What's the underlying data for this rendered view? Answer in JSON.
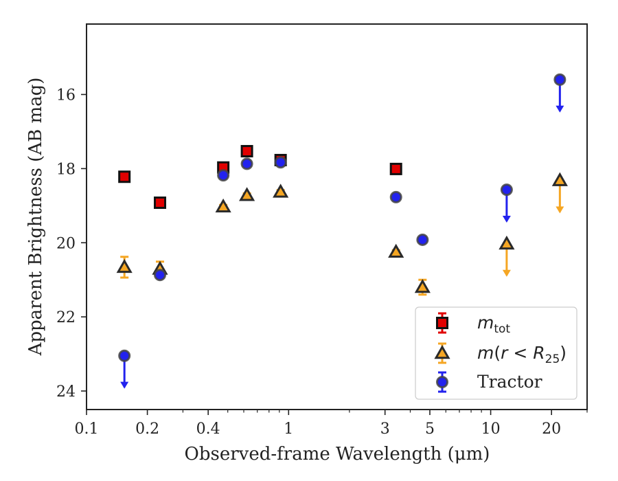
{
  "chart_data": {
    "type": "scatter",
    "title": "",
    "xlabel": "Observed-frame Wavelength (μm)",
    "ylabel": "Apparent Brightness (AB mag)",
    "xscale": "log",
    "xlim": [
      0.1,
      30
    ],
    "ylim": [
      24.5,
      14.1
    ],
    "y_inverted": true,
    "x_ticks": [
      0.1,
      0.2,
      0.4,
      1,
      3,
      5,
      10,
      20
    ],
    "x_tick_labels": [
      "0.1",
      "0.2",
      "0.4",
      "1",
      "3",
      "5",
      "10",
      "20"
    ],
    "y_ticks": [
      16,
      18,
      20,
      22,
      24
    ],
    "y_tick_labels": [
      "16",
      "18",
      "20",
      "22",
      "24"
    ],
    "legend_placement": "lower right",
    "series": [
      {
        "name": "m_tot",
        "legend_label": "m_tot",
        "marker": "square",
        "color": "#e00000",
        "errcolor": "#e00000",
        "x": [
          0.154,
          0.231,
          0.475,
          0.622,
          0.913,
          3.4
        ],
        "y": [
          18.22,
          18.92,
          17.97,
          17.53,
          17.77,
          18.01
        ],
        "err": [
          0.08,
          0.08,
          0.05,
          0.05,
          0.06,
          0.05
        ],
        "upper_limit": [
          false,
          false,
          false,
          false,
          false,
          false
        ]
      },
      {
        "name": "m(r<R25)",
        "legend_label": "m(r < R25)",
        "marker": "triangle",
        "color": "#f5a623",
        "errcolor": "#f5a623",
        "x": [
          0.154,
          0.231,
          0.475,
          0.622,
          0.913,
          3.4,
          4.6,
          12.0,
          22.0
        ],
        "y": [
          20.66,
          20.71,
          19.03,
          18.72,
          18.63,
          20.25,
          21.2,
          20.03,
          18.32
        ],
        "err": [
          0.28,
          0.2,
          0.05,
          0.05,
          0.05,
          0.05,
          0.2,
          0,
          0
        ],
        "upper_limit": [
          false,
          false,
          false,
          false,
          false,
          false,
          false,
          true,
          true
        ]
      },
      {
        "name": "Tractor",
        "legend_label": "Tractor",
        "marker": "circle",
        "color": "#2222ee",
        "errcolor": "#2222ee",
        "x": [
          0.154,
          0.231,
          0.475,
          0.622,
          0.913,
          3.4,
          4.6,
          12.0,
          22.0
        ],
        "y": [
          23.05,
          20.87,
          18.18,
          17.87,
          17.83,
          18.77,
          19.92,
          18.57,
          15.6
        ],
        "err": [
          0,
          0.05,
          0.05,
          0.05,
          0.05,
          0.05,
          0.05,
          0,
          0
        ],
        "upper_limit": [
          true,
          false,
          false,
          false,
          false,
          false,
          false,
          true,
          true
        ]
      }
    ],
    "upper_limit_arrow_mag": 0.85
  }
}
